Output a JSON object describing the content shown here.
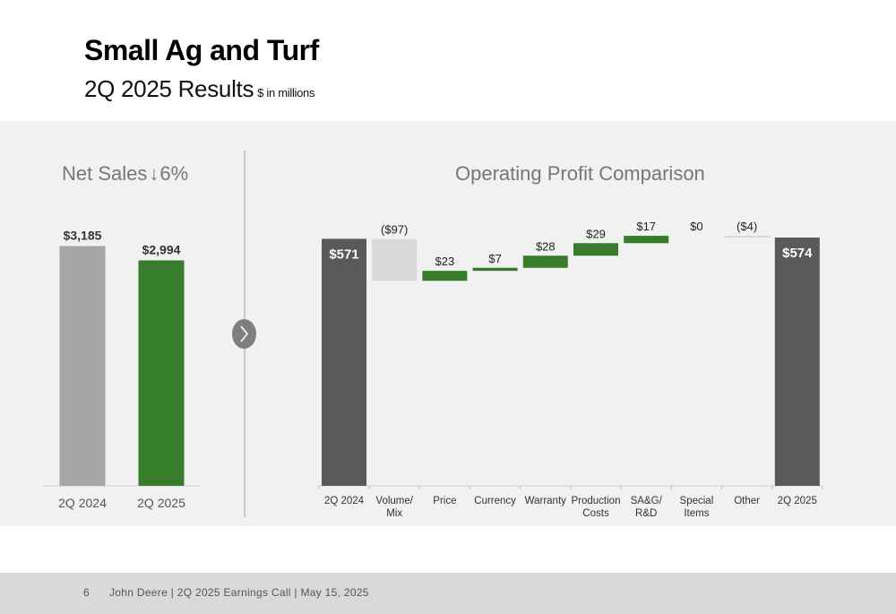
{
  "header": {
    "title": "Small Ag and Turf",
    "subtitle": "2Q 2025 Results",
    "unit_note": "$ in millions"
  },
  "net_sales": {
    "title_prefix": "Net Sales",
    "arrow": "↓",
    "change": "6%"
  },
  "operating_profit": {
    "title": "Operating Profit Comparison"
  },
  "footer": {
    "page_number": "6",
    "text": "John Deere | 2Q 2025 Earnings Call | May 15, 2025"
  },
  "colors": {
    "prior_year_bar": "#a6a6a6",
    "current_year_bar": "#367c2b",
    "total_bar": "#595959",
    "negative_bar": "#d9d9d9",
    "positive_bar": "#367c2b",
    "band_background": "#f1f1f1"
  },
  "icons": [
    "chevron-right-icon",
    "arrow-down-icon"
  ],
  "chart_data": [
    {
      "type": "bar",
      "title": "Net Sales",
      "categories": [
        "2Q 2024",
        "2Q 2025"
      ],
      "values": [
        3185,
        2994
      ],
      "labels": [
        "$3,185",
        "$2,994"
      ],
      "ylim": [
        0,
        3500
      ]
    },
    {
      "type": "waterfall",
      "title": "Operating Profit Comparison",
      "categories": [
        "2Q 2024",
        "Volume/\nMix",
        "Price",
        "Currency",
        "Warranty",
        "Production\nCosts",
        "SA&G/\nR&D",
        "Special\nItems",
        "Other",
        "2Q 2025"
      ],
      "values": [
        571,
        -97,
        23,
        7,
        28,
        29,
        17,
        0,
        -4,
        574
      ],
      "kinds": [
        "total",
        "delta",
        "delta",
        "delta",
        "delta",
        "delta",
        "delta",
        "delta",
        "delta",
        "total"
      ],
      "labels": [
        "$571",
        "($97)",
        "$23",
        "$7",
        "$28",
        "$29",
        "$17",
        "$0",
        "($4)",
        "$574"
      ],
      "ylim": [
        0,
        600
      ]
    }
  ]
}
